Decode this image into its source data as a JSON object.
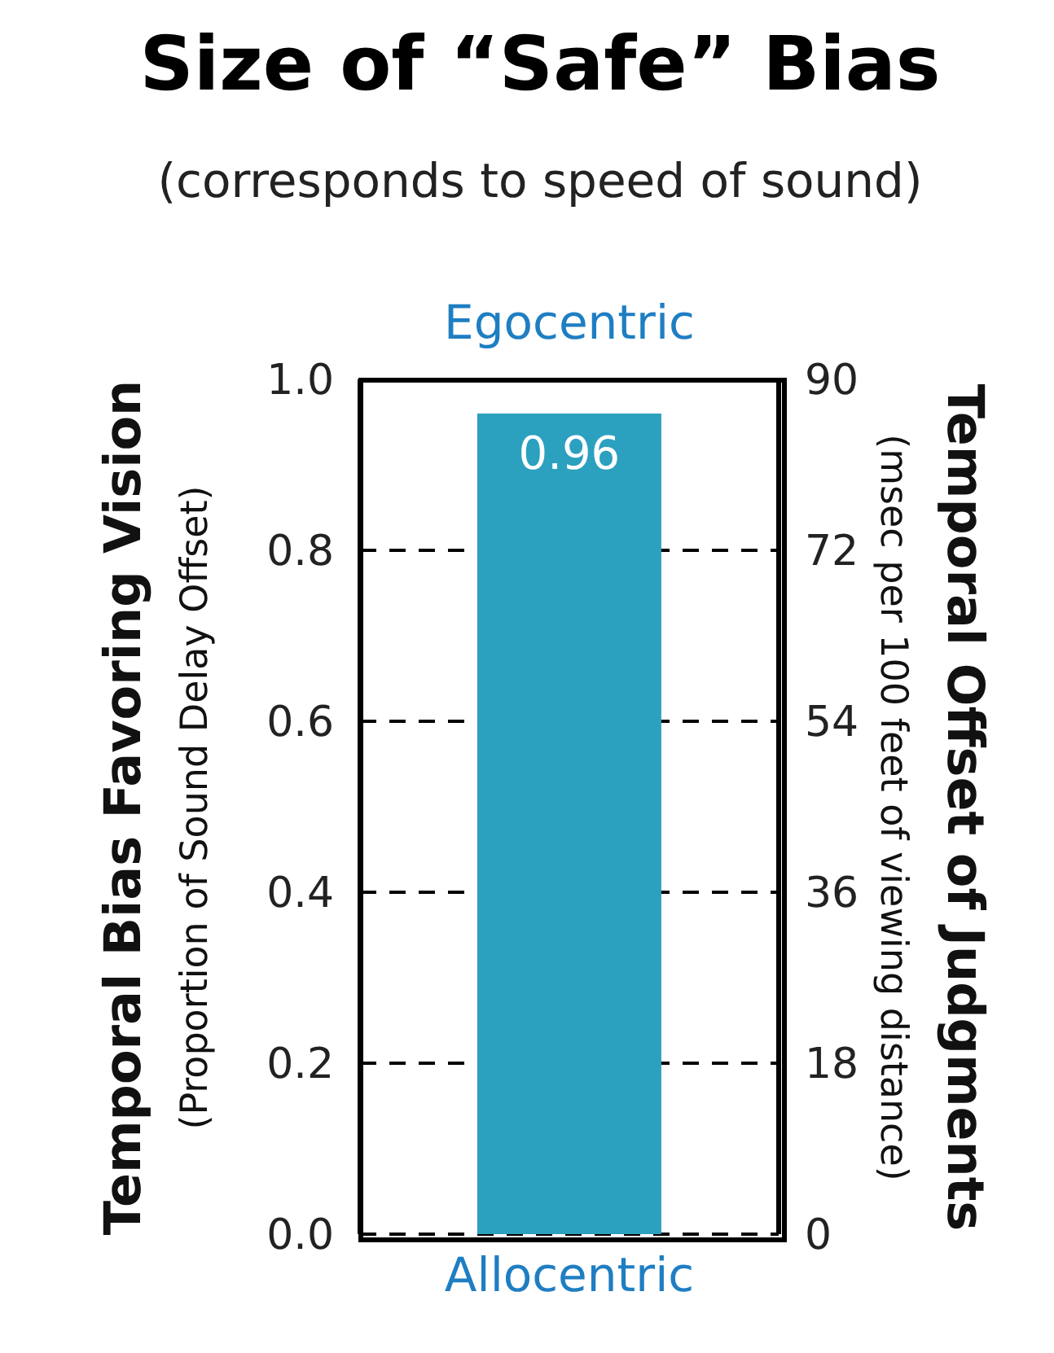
{
  "chart_data": {
    "type": "bar",
    "title": "Size of “Safe” Bias",
    "subtitle": "(corresponds to speed of sound)",
    "ylabel": "Temporal Bias Favoring Vision\n(Proportion of Sound Delay Offset)",
    "y2label": "Temporal Offset of Judgments\n(msec per 100 feet of viewing distance)",
    "categories": [
      null
    ],
    "values": [
      0.96
    ],
    "color": "#2ca0bf",
    "data_labels": true,
    "ylim": [
      0,
      1
    ],
    "yticks": [
      {
        "value": 0,
        "label": "0.0"
      },
      {
        "value": 0.2,
        "label": "0.2"
      },
      {
        "value": 0.4,
        "label": "0.4"
      },
      {
        "value": 0.6,
        "label": "0.6"
      },
      {
        "value": 0.8,
        "label": "0.8"
      },
      {
        "value": 1,
        "label": "1.0"
      }
    ],
    "y2lim": [
      0,
      90
    ],
    "y2ticks": [
      0,
      18,
      36,
      54,
      72,
      90
    ],
    "grid": "y",
    "line_style": "dashed",
    "annotations": [
      "Egocentric",
      "Allocentric"
    ]
  }
}
